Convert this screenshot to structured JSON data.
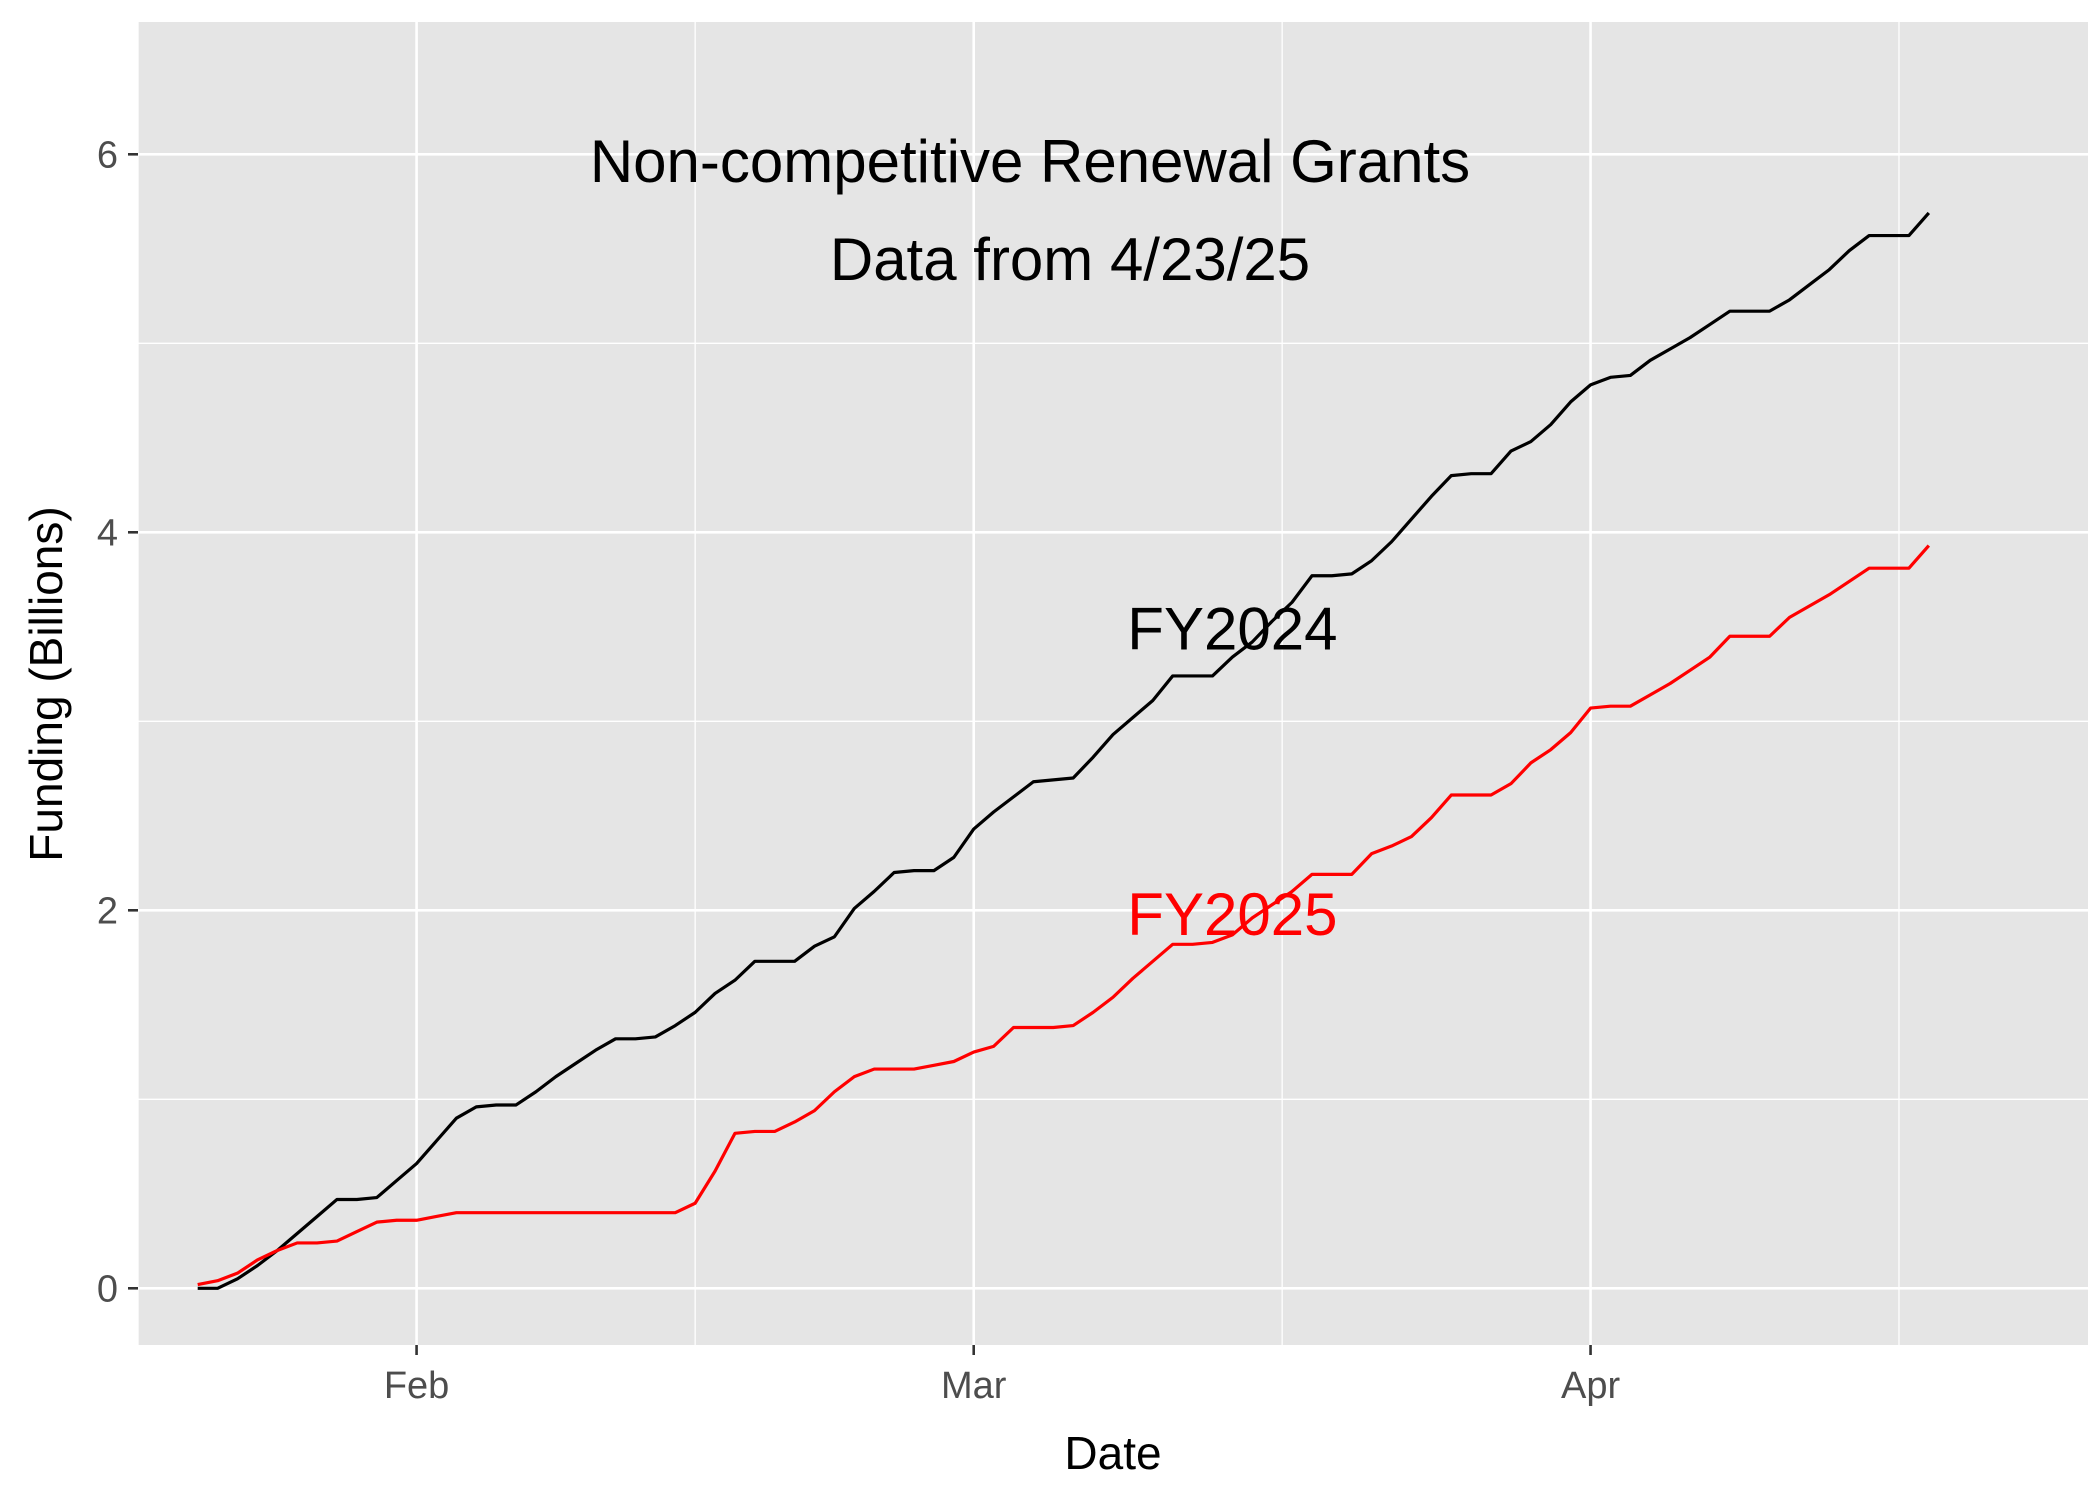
{
  "chart_data": {
    "type": "line",
    "title": "Non-competitive Renewal Grants",
    "subtitle": "Data from 4/23/25",
    "xlabel": "Date",
    "ylabel": "Funding (Billions)",
    "x_ticks": [
      {
        "label": "Feb",
        "date": "02-01"
      },
      {
        "label": "Mar",
        "date": "03-01"
      },
      {
        "label": "Apr",
        "date": "04-01"
      }
    ],
    "y_ticks": [
      0,
      2,
      4,
      6
    ],
    "xlim": [
      "01-18",
      "04-26"
    ],
    "ylim": [
      -0.3,
      6.7
    ],
    "grid": true,
    "legend": "none",
    "colors": {
      "panel": "#e5e5e5",
      "grid": "#ffffff",
      "fy2024": "#000000",
      "fy2025": "#ff0000"
    },
    "annotations": [
      {
        "text": "FY2024",
        "color": "#000000",
        "date": "03-14",
        "y": 3.49
      },
      {
        "text": "FY2025",
        "color": "#ff0000",
        "date": "03-14",
        "y": 1.98
      }
    ],
    "series": [
      {
        "name": "FY2024",
        "color": "#000000",
        "points": [
          [
            "01-21",
            0.0
          ],
          [
            "01-22",
            0.0
          ],
          [
            "01-23",
            0.05
          ],
          [
            "01-24",
            0.12
          ],
          [
            "01-25",
            0.2
          ],
          [
            "01-26",
            0.29
          ],
          [
            "01-27",
            0.38
          ],
          [
            "01-28",
            0.47
          ],
          [
            "01-29",
            0.47
          ],
          [
            "01-30",
            0.48
          ],
          [
            "01-31",
            0.57
          ],
          [
            "02-01",
            0.66
          ],
          [
            "02-02",
            0.78
          ],
          [
            "02-03",
            0.9
          ],
          [
            "02-04",
            0.96
          ],
          [
            "02-05",
            0.97
          ],
          [
            "02-06",
            0.97
          ],
          [
            "02-07",
            1.04
          ],
          [
            "02-08",
            1.12
          ],
          [
            "02-09",
            1.19
          ],
          [
            "02-10",
            1.26
          ],
          [
            "02-11",
            1.32
          ],
          [
            "02-12",
            1.32
          ],
          [
            "02-13",
            1.33
          ],
          [
            "02-14",
            1.39
          ],
          [
            "02-15",
            1.46
          ],
          [
            "02-16",
            1.56
          ],
          [
            "02-17",
            1.63
          ],
          [
            "02-18",
            1.73
          ],
          [
            "02-19",
            1.73
          ],
          [
            "02-20",
            1.73
          ],
          [
            "02-21",
            1.81
          ],
          [
            "02-22",
            1.86
          ],
          [
            "02-23",
            2.01
          ],
          [
            "02-24",
            2.1
          ],
          [
            "02-25",
            2.2
          ],
          [
            "02-26",
            2.21
          ],
          [
            "02-27",
            2.21
          ],
          [
            "02-28",
            2.28
          ],
          [
            "03-01",
            2.43
          ],
          [
            "03-02",
            2.52
          ],
          [
            "03-03",
            2.6
          ],
          [
            "03-04",
            2.68
          ],
          [
            "03-05",
            2.69
          ],
          [
            "03-06",
            2.7
          ],
          [
            "03-07",
            2.81
          ],
          [
            "03-08",
            2.93
          ],
          [
            "03-09",
            3.02
          ],
          [
            "03-10",
            3.11
          ],
          [
            "03-11",
            3.24
          ],
          [
            "03-12",
            3.24
          ],
          [
            "03-13",
            3.24
          ],
          [
            "03-14",
            3.34
          ],
          [
            "03-15",
            3.42
          ],
          [
            "03-16",
            3.53
          ],
          [
            "03-17",
            3.63
          ],
          [
            "03-18",
            3.77
          ],
          [
            "03-19",
            3.77
          ],
          [
            "03-20",
            3.78
          ],
          [
            "03-21",
            3.85
          ],
          [
            "03-22",
            3.95
          ],
          [
            "03-23",
            4.07
          ],
          [
            "03-24",
            4.19
          ],
          [
            "03-25",
            4.3
          ],
          [
            "03-26",
            4.31
          ],
          [
            "03-27",
            4.31
          ],
          [
            "03-28",
            4.43
          ],
          [
            "03-29",
            4.48
          ],
          [
            "03-30",
            4.57
          ],
          [
            "03-31",
            4.69
          ],
          [
            "04-01",
            4.78
          ],
          [
            "04-02",
            4.82
          ],
          [
            "04-03",
            4.83
          ],
          [
            "04-04",
            4.91
          ],
          [
            "04-05",
            4.97
          ],
          [
            "04-06",
            5.03
          ],
          [
            "04-07",
            5.1
          ],
          [
            "04-08",
            5.17
          ],
          [
            "04-09",
            5.17
          ],
          [
            "04-10",
            5.17
          ],
          [
            "04-11",
            5.23
          ],
          [
            "04-12",
            5.31
          ],
          [
            "04-13",
            5.39
          ],
          [
            "04-14",
            5.49
          ],
          [
            "04-15",
            5.57
          ],
          [
            "04-16",
            5.57
          ],
          [
            "04-17",
            5.57
          ],
          [
            "04-18",
            5.69
          ]
        ]
      },
      {
        "name": "FY2025",
        "color": "#ff0000",
        "points": [
          [
            "01-21",
            0.02
          ],
          [
            "01-22",
            0.04
          ],
          [
            "01-23",
            0.08
          ],
          [
            "01-24",
            0.15
          ],
          [
            "01-25",
            0.2
          ],
          [
            "01-26",
            0.24
          ],
          [
            "01-27",
            0.24
          ],
          [
            "01-28",
            0.25
          ],
          [
            "01-29",
            0.3
          ],
          [
            "01-30",
            0.35
          ],
          [
            "01-31",
            0.36
          ],
          [
            "02-01",
            0.36
          ],
          [
            "02-02",
            0.38
          ],
          [
            "02-03",
            0.4
          ],
          [
            "02-04",
            0.4
          ],
          [
            "02-05",
            0.4
          ],
          [
            "02-06",
            0.4
          ],
          [
            "02-07",
            0.4
          ],
          [
            "02-08",
            0.4
          ],
          [
            "02-09",
            0.4
          ],
          [
            "02-10",
            0.4
          ],
          [
            "02-11",
            0.4
          ],
          [
            "02-12",
            0.4
          ],
          [
            "02-13",
            0.4
          ],
          [
            "02-14",
            0.4
          ],
          [
            "02-15",
            0.45
          ],
          [
            "02-16",
            0.62
          ],
          [
            "02-17",
            0.82
          ],
          [
            "02-18",
            0.83
          ],
          [
            "02-19",
            0.83
          ],
          [
            "02-20",
            0.88
          ],
          [
            "02-21",
            0.94
          ],
          [
            "02-22",
            1.04
          ],
          [
            "02-23",
            1.12
          ],
          [
            "02-24",
            1.16
          ],
          [
            "02-25",
            1.16
          ],
          [
            "02-26",
            1.16
          ],
          [
            "02-27",
            1.18
          ],
          [
            "02-28",
            1.2
          ],
          [
            "03-01",
            1.25
          ],
          [
            "03-02",
            1.28
          ],
          [
            "03-03",
            1.38
          ],
          [
            "03-04",
            1.38
          ],
          [
            "03-05",
            1.38
          ],
          [
            "03-06",
            1.39
          ],
          [
            "03-07",
            1.46
          ],
          [
            "03-08",
            1.54
          ],
          [
            "03-09",
            1.64
          ],
          [
            "03-10",
            1.73
          ],
          [
            "03-11",
            1.82
          ],
          [
            "03-12",
            1.82
          ],
          [
            "03-13",
            1.83
          ],
          [
            "03-14",
            1.87
          ],
          [
            "03-15",
            1.96
          ],
          [
            "03-16",
            2.03
          ],
          [
            "03-17",
            2.1
          ],
          [
            "03-18",
            2.19
          ],
          [
            "03-19",
            2.19
          ],
          [
            "03-20",
            2.19
          ],
          [
            "03-21",
            2.3
          ],
          [
            "03-22",
            2.34
          ],
          [
            "03-23",
            2.39
          ],
          [
            "03-24",
            2.49
          ],
          [
            "03-25",
            2.61
          ],
          [
            "03-26",
            2.61
          ],
          [
            "03-27",
            2.61
          ],
          [
            "03-28",
            2.67
          ],
          [
            "03-29",
            2.78
          ],
          [
            "03-30",
            2.85
          ],
          [
            "03-31",
            2.94
          ],
          [
            "04-01",
            3.07
          ],
          [
            "04-02",
            3.08
          ],
          [
            "04-03",
            3.08
          ],
          [
            "04-04",
            3.14
          ],
          [
            "04-05",
            3.2
          ],
          [
            "04-06",
            3.27
          ],
          [
            "04-07",
            3.34
          ],
          [
            "04-08",
            3.45
          ],
          [
            "04-09",
            3.45
          ],
          [
            "04-10",
            3.45
          ],
          [
            "04-11",
            3.55
          ],
          [
            "04-12",
            3.61
          ],
          [
            "04-13",
            3.67
          ],
          [
            "04-14",
            3.74
          ],
          [
            "04-15",
            3.81
          ],
          [
            "04-16",
            3.81
          ],
          [
            "04-17",
            3.81
          ],
          [
            "04-18",
            3.93
          ]
        ]
      }
    ]
  }
}
